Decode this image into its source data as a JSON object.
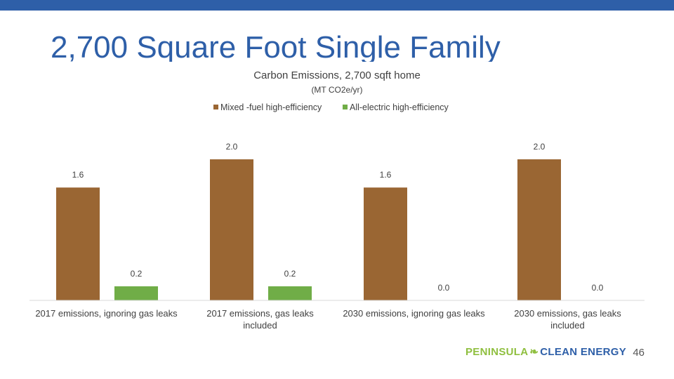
{
  "slide": {
    "title": "2,700 Square Foot Single Family",
    "page_number": "46",
    "logo_part1": "PENINSULA",
    "logo_part2": "CLEAN ENERGY"
  },
  "colors": {
    "brand_blue": "#2e5fa8",
    "mixed_fuel": "#9a6633",
    "all_electric": "#70ad47",
    "logo_green": "#8fbf3f"
  },
  "chart_data": {
    "type": "bar",
    "title": "Carbon Emissions, 2,700 sqft home",
    "subtitle": "(MT CO2e/yr)",
    "categories": [
      [
        "2017 emissions, ignoring gas leaks"
      ],
      [
        "2017 emissions, gas leaks",
        "included"
      ],
      [
        "2030 emissions, ignoring gas leaks"
      ],
      [
        "2030 emissions, gas leaks",
        "included"
      ]
    ],
    "series": [
      {
        "name": "Mixed -fuel high-efficiency",
        "values": [
          1.6,
          2.0,
          1.6,
          2.0
        ],
        "labels": [
          "1.6",
          "2.0",
          "1.6",
          "2.0"
        ],
        "color": "#9a6633"
      },
      {
        "name": "All-electric high-efficiency",
        "values": [
          0.2,
          0.2,
          0.0,
          0.0
        ],
        "labels": [
          "0.2",
          "0.2",
          "0.0",
          "0.0"
        ],
        "color": "#70ad47"
      }
    ],
    "ylim": [
      0,
      2.1
    ],
    "legend": "top",
    "grid": false
  }
}
